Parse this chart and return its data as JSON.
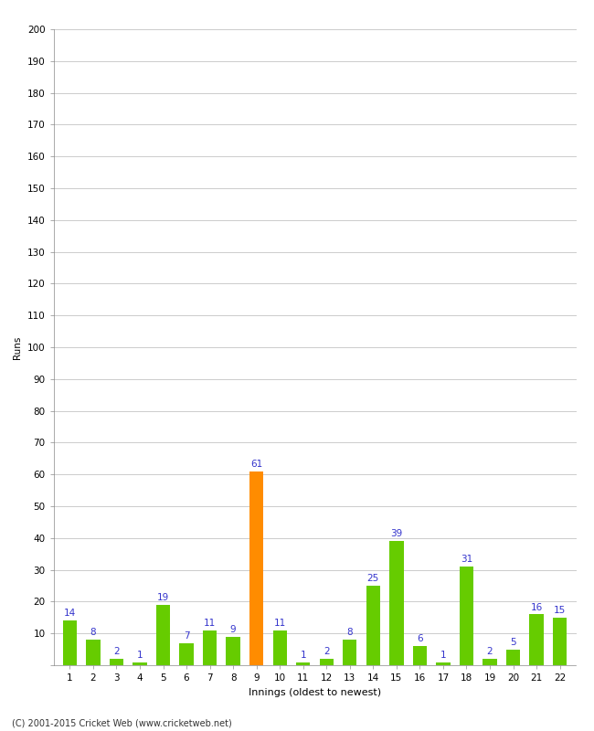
{
  "innings": [
    1,
    2,
    3,
    4,
    5,
    6,
    7,
    8,
    9,
    10,
    11,
    12,
    13,
    14,
    15,
    16,
    17,
    18,
    19,
    20,
    21,
    22
  ],
  "runs": [
    14,
    8,
    2,
    1,
    19,
    7,
    11,
    9,
    61,
    11,
    1,
    2,
    8,
    25,
    39,
    6,
    1,
    31,
    2,
    5,
    16,
    15
  ],
  "bar_colors": [
    "#66cc00",
    "#66cc00",
    "#66cc00",
    "#66cc00",
    "#66cc00",
    "#66cc00",
    "#66cc00",
    "#66cc00",
    "#ff8c00",
    "#66cc00",
    "#66cc00",
    "#66cc00",
    "#66cc00",
    "#66cc00",
    "#66cc00",
    "#66cc00",
    "#66cc00",
    "#66cc00",
    "#66cc00",
    "#66cc00",
    "#66cc00",
    "#66cc00"
  ],
  "xlabel": "Innings (oldest to newest)",
  "ylabel": "Runs",
  "ylim": [
    0,
    200
  ],
  "yticks": [
    0,
    10,
    20,
    30,
    40,
    50,
    60,
    70,
    80,
    90,
    100,
    110,
    120,
    130,
    140,
    150,
    160,
    170,
    180,
    190,
    200
  ],
  "label_color": "#3333cc",
  "label_fontsize": 7.5,
  "axis_fontsize": 8,
  "tick_fontsize": 7.5,
  "ylabel_fontsize": 7.5,
  "footer": "(C) 2001-2015 Cricket Web (www.cricketweb.net)",
  "background_color": "#ffffff",
  "grid_color": "#cccccc",
  "bar_width": 0.6
}
